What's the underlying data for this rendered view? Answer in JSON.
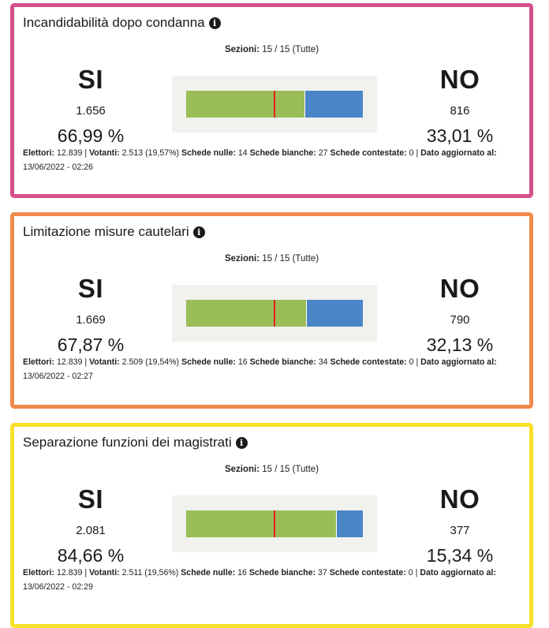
{
  "cards": [
    {
      "title": "Incandidabilità dopo condanna",
      "border_color": "#d5508b",
      "sezioni_label": "Sezioni:",
      "sezioni_value": "15 / 15 (Tutte)",
      "si_label": "SI",
      "si_count": "1.656",
      "si_pct": "66,99 %",
      "no_label": "NO",
      "no_count": "816",
      "no_pct": "33,01 %",
      "yes_fraction": 0.6699,
      "stats": {
        "elettori_label": "Elettori:",
        "elettori": "12.839",
        "votanti_label": "Votanti:",
        "votanti": "2.513 (19,57%)",
        "nulle_label": "Schede nulle:",
        "nulle": "14",
        "bianche_label": "Schede bianche:",
        "bianche": "27",
        "contestate_label": "Schede contestate:",
        "contestate": "0",
        "aggiornato_label": "Dato aggiornato al:",
        "aggiornato": "13/06/2022 - 02:26"
      }
    },
    {
      "title": "Limitazione misure cautelari",
      "border_color": "#f08a4b",
      "sezioni_label": "Sezioni:",
      "sezioni_value": "15 / 15 (Tutte)",
      "si_label": "SI",
      "si_count": "1.669",
      "si_pct": "67,87 %",
      "no_label": "NO",
      "no_count": "790",
      "no_pct": "32,13 %",
      "yes_fraction": 0.6787,
      "stats": {
        "elettori_label": "Elettori:",
        "elettori": "12.839",
        "votanti_label": "Votanti:",
        "votanti": "2.509 (19,54%)",
        "nulle_label": "Schede nulle:",
        "nulle": "16",
        "bianche_label": "Schede bianche:",
        "bianche": "34",
        "contestate_label": "Schede contestate:",
        "contestate": "0",
        "aggiornato_label": "Dato aggiornato al:",
        "aggiornato": "13/06/2022 - 02:27"
      }
    },
    {
      "title": "Separazione funzioni dei magistrati",
      "border_color": "#f7e02a",
      "sezioni_label": "Sezioni:",
      "sezioni_value": "15 / 15 (Tutte)",
      "si_label": "SI",
      "si_count": "2.081",
      "si_pct": "84,66 %",
      "no_label": "NO",
      "no_count": "377",
      "no_pct": "15,34 %",
      "yes_fraction": 0.8466,
      "stats": {
        "elettori_label": "Elettori:",
        "elettori": "12.839",
        "votanti_label": "Votanti:",
        "votanti": "2.511 (19,56%)",
        "nulle_label": "Schede nulle:",
        "nulle": "16",
        "bianche_label": "Schede bianche:",
        "bianche": "37",
        "contestate_label": "Schede contestate:",
        "contestate": "0",
        "aggiornato_label": "Dato aggiornato al:",
        "aggiornato": "13/06/2022 - 02:29"
      }
    }
  ],
  "icon": "info-icon",
  "colors": {
    "si_bar": "#9bbd57",
    "no_bar": "#4a86c7",
    "midline": "#e02020",
    "bar_background": "#f1f2ee"
  }
}
